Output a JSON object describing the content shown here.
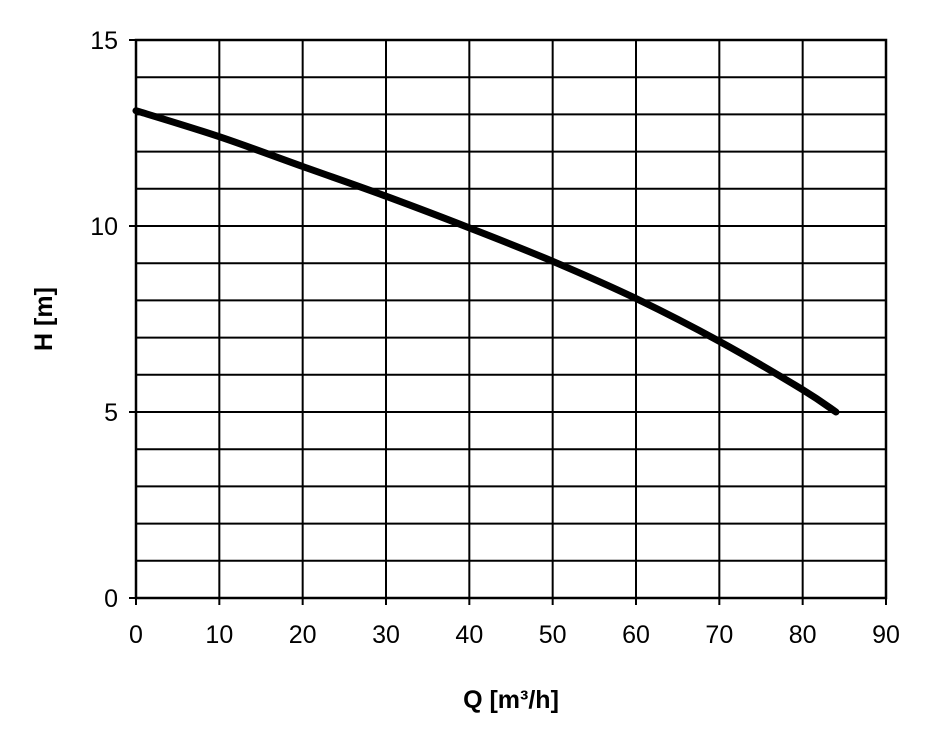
{
  "chart_data": {
    "type": "line",
    "xlabel": "Q [m³/h]",
    "ylabel": "H [m]",
    "xlim": [
      0,
      90
    ],
    "ylim": [
      0,
      15
    ],
    "x_ticks": [
      0,
      10,
      20,
      30,
      40,
      50,
      60,
      70,
      80,
      90
    ],
    "y_ticks": [
      0,
      5,
      10,
      15
    ],
    "grid": true,
    "minor_y_grid_step": 1,
    "legend": "none",
    "series": [
      {
        "x": [
          0,
          10,
          20,
          30,
          40,
          50,
          60,
          70,
          80,
          84
        ],
        "y": [
          13.1,
          12.4,
          11.6,
          10.8,
          9.95,
          9.05,
          8.05,
          6.9,
          5.6,
          5.0
        ],
        "color": "#000000"
      }
    ]
  }
}
